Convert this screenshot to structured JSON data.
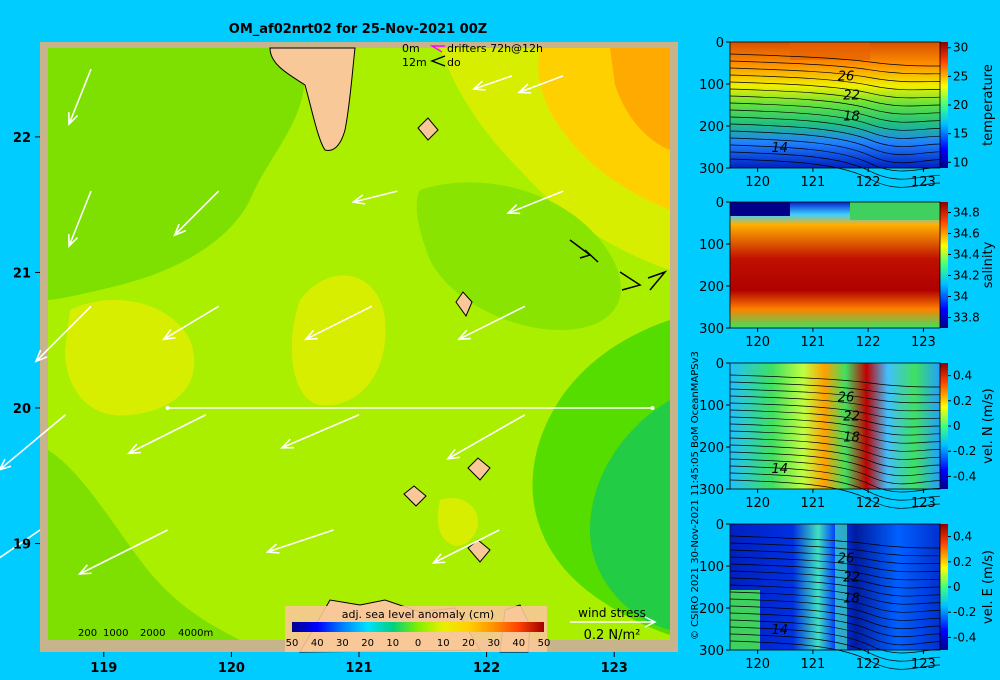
{
  "background_color": "#00ccff",
  "chart_data": [
    {
      "type": "heatmap",
      "title": "OM_af02nrt02 for 25-Nov-2021 00Z",
      "x_ticks": [
        "119",
        "120",
        "121",
        "122",
        "123"
      ],
      "y_ticks": [
        "19",
        "20",
        "21",
        "22"
      ],
      "xlim": [
        118.5,
        123.5
      ],
      "ylim": [
        18.2,
        22.7
      ],
      "legend": {
        "drifter_0m": "0m",
        "drifter_12m": "12m",
        "drifters_label": "drifters 72h@12h",
        "do_label": "do"
      },
      "depth_legend": [
        "200",
        "1000",
        "2000",
        "4000m"
      ],
      "colorbar": {
        "label": "adj. sea level anomaly (cm)",
        "ticks": [
          "50",
          "40",
          "30",
          "20",
          "10",
          "0",
          "10",
          "20",
          "30",
          "40",
          "50"
        ],
        "range": [
          -50,
          50
        ]
      },
      "wind_stress": {
        "label": "wind stress",
        "scale_label": "0.2 N/m²",
        "value": 0.2
      },
      "section_line": {
        "lon_start": 119.5,
        "lon_end": 123.3,
        "lat": 20.0
      },
      "wind_arrows": [
        {
          "lon": 118.9,
          "lat": 22.5,
          "u": -0.2,
          "v": -0.5
        },
        {
          "lon": 122.2,
          "lat": 22.45,
          "u": -0.35,
          "v": -0.12
        },
        {
          "lon": 122.6,
          "lat": 22.45,
          "u": -0.4,
          "v": -0.15
        },
        {
          "lon": 118.9,
          "lat": 21.6,
          "u": -0.2,
          "v": -0.5
        },
        {
          "lon": 119.9,
          "lat": 21.6,
          "u": -0.4,
          "v": -0.4
        },
        {
          "lon": 121.3,
          "lat": 21.6,
          "u": -0.4,
          "v": -0.1
        },
        {
          "lon": 122.6,
          "lat": 21.6,
          "u": -0.5,
          "v": -0.2
        },
        {
          "lon": 118.9,
          "lat": 20.75,
          "u": -0.5,
          "v": -0.5
        },
        {
          "lon": 119.9,
          "lat": 20.75,
          "u": -0.5,
          "v": -0.3
        },
        {
          "lon": 121.1,
          "lat": 20.75,
          "u": -0.6,
          "v": -0.3
        },
        {
          "lon": 122.3,
          "lat": 20.75,
          "u": -0.6,
          "v": -0.3
        },
        {
          "lon": 118.7,
          "lat": 19.95,
          "u": -0.6,
          "v": -0.5
        },
        {
          "lon": 119.8,
          "lat": 19.95,
          "u": -0.7,
          "v": -0.35
        },
        {
          "lon": 121.0,
          "lat": 19.95,
          "u": -0.7,
          "v": -0.3
        },
        {
          "lon": 122.3,
          "lat": 19.95,
          "u": -0.7,
          "v": -0.4
        },
        {
          "lon": 118.5,
          "lat": 19.1,
          "u": -0.8,
          "v": -0.55
        },
        {
          "lon": 119.5,
          "lat": 19.1,
          "u": -0.8,
          "v": -0.4
        },
        {
          "lon": 120.8,
          "lat": 19.1,
          "u": -0.6,
          "v": -0.2
        },
        {
          "lon": 122.1,
          "lat": 19.1,
          "u": -0.6,
          "v": -0.3
        }
      ]
    },
    {
      "type": "heatmap",
      "ylabel": "temperature",
      "x_ticks": [
        "120",
        "121",
        "122",
        "123"
      ],
      "y_ticks": [
        "0",
        "100",
        "200",
        "300"
      ],
      "colorbar_ticks": [
        "30",
        "25",
        "20",
        "15",
        "10"
      ],
      "range": [
        9,
        31
      ],
      "contour_labels": [
        {
          "text": "26",
          "lon": 121.6,
          "depth": 80
        },
        {
          "text": "22",
          "lon": 121.7,
          "depth": 125
        },
        {
          "text": "18",
          "lon": 121.7,
          "depth": 175
        },
        {
          "text": "14",
          "lon": 120.4,
          "depth": 250
        }
      ]
    },
    {
      "type": "heatmap",
      "ylabel": "salinity",
      "x_ticks": [
        "120",
        "121",
        "122",
        "123"
      ],
      "y_ticks": [
        "0",
        "100",
        "200",
        "300"
      ],
      "colorbar_ticks": [
        "34.8",
        "34.6",
        "34.4",
        "34.2",
        "34",
        "33.8"
      ],
      "range": [
        33.7,
        34.9
      ]
    },
    {
      "type": "heatmap",
      "ylabel": "vel. N (m/s)",
      "x_ticks": [
        "120",
        "121",
        "122",
        "123"
      ],
      "y_ticks": [
        "0",
        "100",
        "200",
        "300"
      ],
      "colorbar_ticks": [
        "0.4",
        "0.2",
        "0",
        "-0.2",
        "-0.4"
      ],
      "range": [
        -0.5,
        0.5
      ],
      "contour_labels": [
        {
          "text": "26",
          "lon": 121.6,
          "depth": 80
        },
        {
          "text": "22",
          "lon": 121.7,
          "depth": 125
        },
        {
          "text": "18",
          "lon": 121.7,
          "depth": 175
        },
        {
          "text": "14",
          "lon": 120.4,
          "depth": 250
        }
      ]
    },
    {
      "type": "heatmap",
      "ylabel": "vel. E (m/s)",
      "x_ticks": [
        "120",
        "121",
        "122",
        "123"
      ],
      "y_ticks": [
        "0",
        "100",
        "200",
        "300"
      ],
      "colorbar_ticks": [
        "0.4",
        "0.2",
        "0",
        "-0.2",
        "-0.4"
      ],
      "range": [
        -0.5,
        0.5
      ],
      "contour_labels": [
        {
          "text": "26",
          "lon": 121.6,
          "depth": 80
        },
        {
          "text": "22",
          "lon": 121.7,
          "depth": 125
        },
        {
          "text": "18",
          "lon": 121.7,
          "depth": 175
        },
        {
          "text": "14",
          "lon": 120.4,
          "depth": 250
        }
      ]
    }
  ],
  "credit": "© CSIRO 2021   30-Nov-2021 11:45:05 BoM OceanMAPSv3"
}
